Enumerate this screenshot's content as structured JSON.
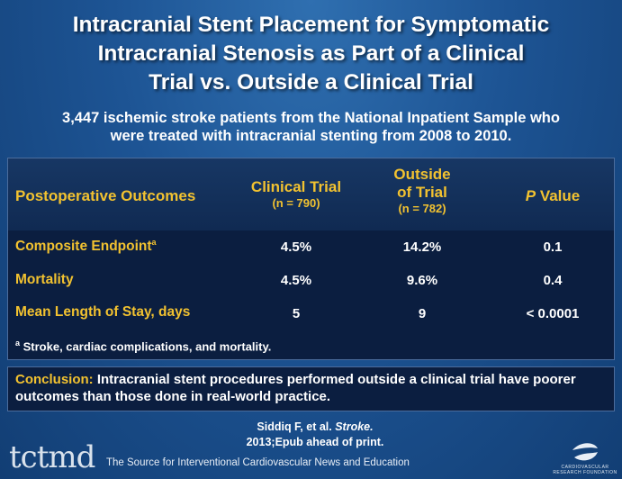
{
  "title_lines": [
    "Intracranial Stent Placement for Symptomatic",
    "Intracranial Stenosis as Part of a Clinical",
    "Trial vs. Outside a Clinical Trial"
  ],
  "subtitle_lines": [
    "3,447 ischemic stroke patients from the National Inpatient Sample who",
    "were treated with intracranial stenting from 2008 to 2010."
  ],
  "table": {
    "header": {
      "outcomes": "Postoperative Outcomes",
      "clinical_trial": "Clinical Trial",
      "clinical_trial_n": "(n = 790)",
      "outside_line1": "Outside",
      "outside_line2": "of Trial",
      "outside_n": "(n = 782)",
      "p_italic": "P",
      "p_rest": " Value"
    },
    "rows": [
      {
        "label": "Composite Endpoint",
        "sup": "a",
        "clinical": "4.5%",
        "outside": "14.2%",
        "p": "0.1"
      },
      {
        "label": "Mortality",
        "sup": "",
        "clinical": "4.5%",
        "outside": "9.6%",
        "p": "0.4"
      },
      {
        "label": "Mean Length of Stay, days",
        "sup": "",
        "clinical": "5",
        "outside": "9",
        "p": "< 0.0001"
      }
    ],
    "footnote_sup": "a",
    "footnote": " Stroke, cardiac complications, and mortality."
  },
  "conclusion": {
    "label": "Conclusion:",
    "text": " Intracranial stent procedures performed outside a clinical trial have poorer outcomes than those done in real-world practice."
  },
  "citation": {
    "authors": "Siddiq F, et al. ",
    "journal": "Stroke.",
    "line2": "2013;Epub ahead of print."
  },
  "footer": {
    "logo_text": "tctmd",
    "tagline": "The Source for Interventional Cardiovascular News and Education",
    "crf_text": "CARDIOVASCULAR RESEARCH FOUNDATION"
  },
  "colors": {
    "accent": "#f2c230",
    "background": "#1d5494",
    "panel": "#0b1e40"
  }
}
